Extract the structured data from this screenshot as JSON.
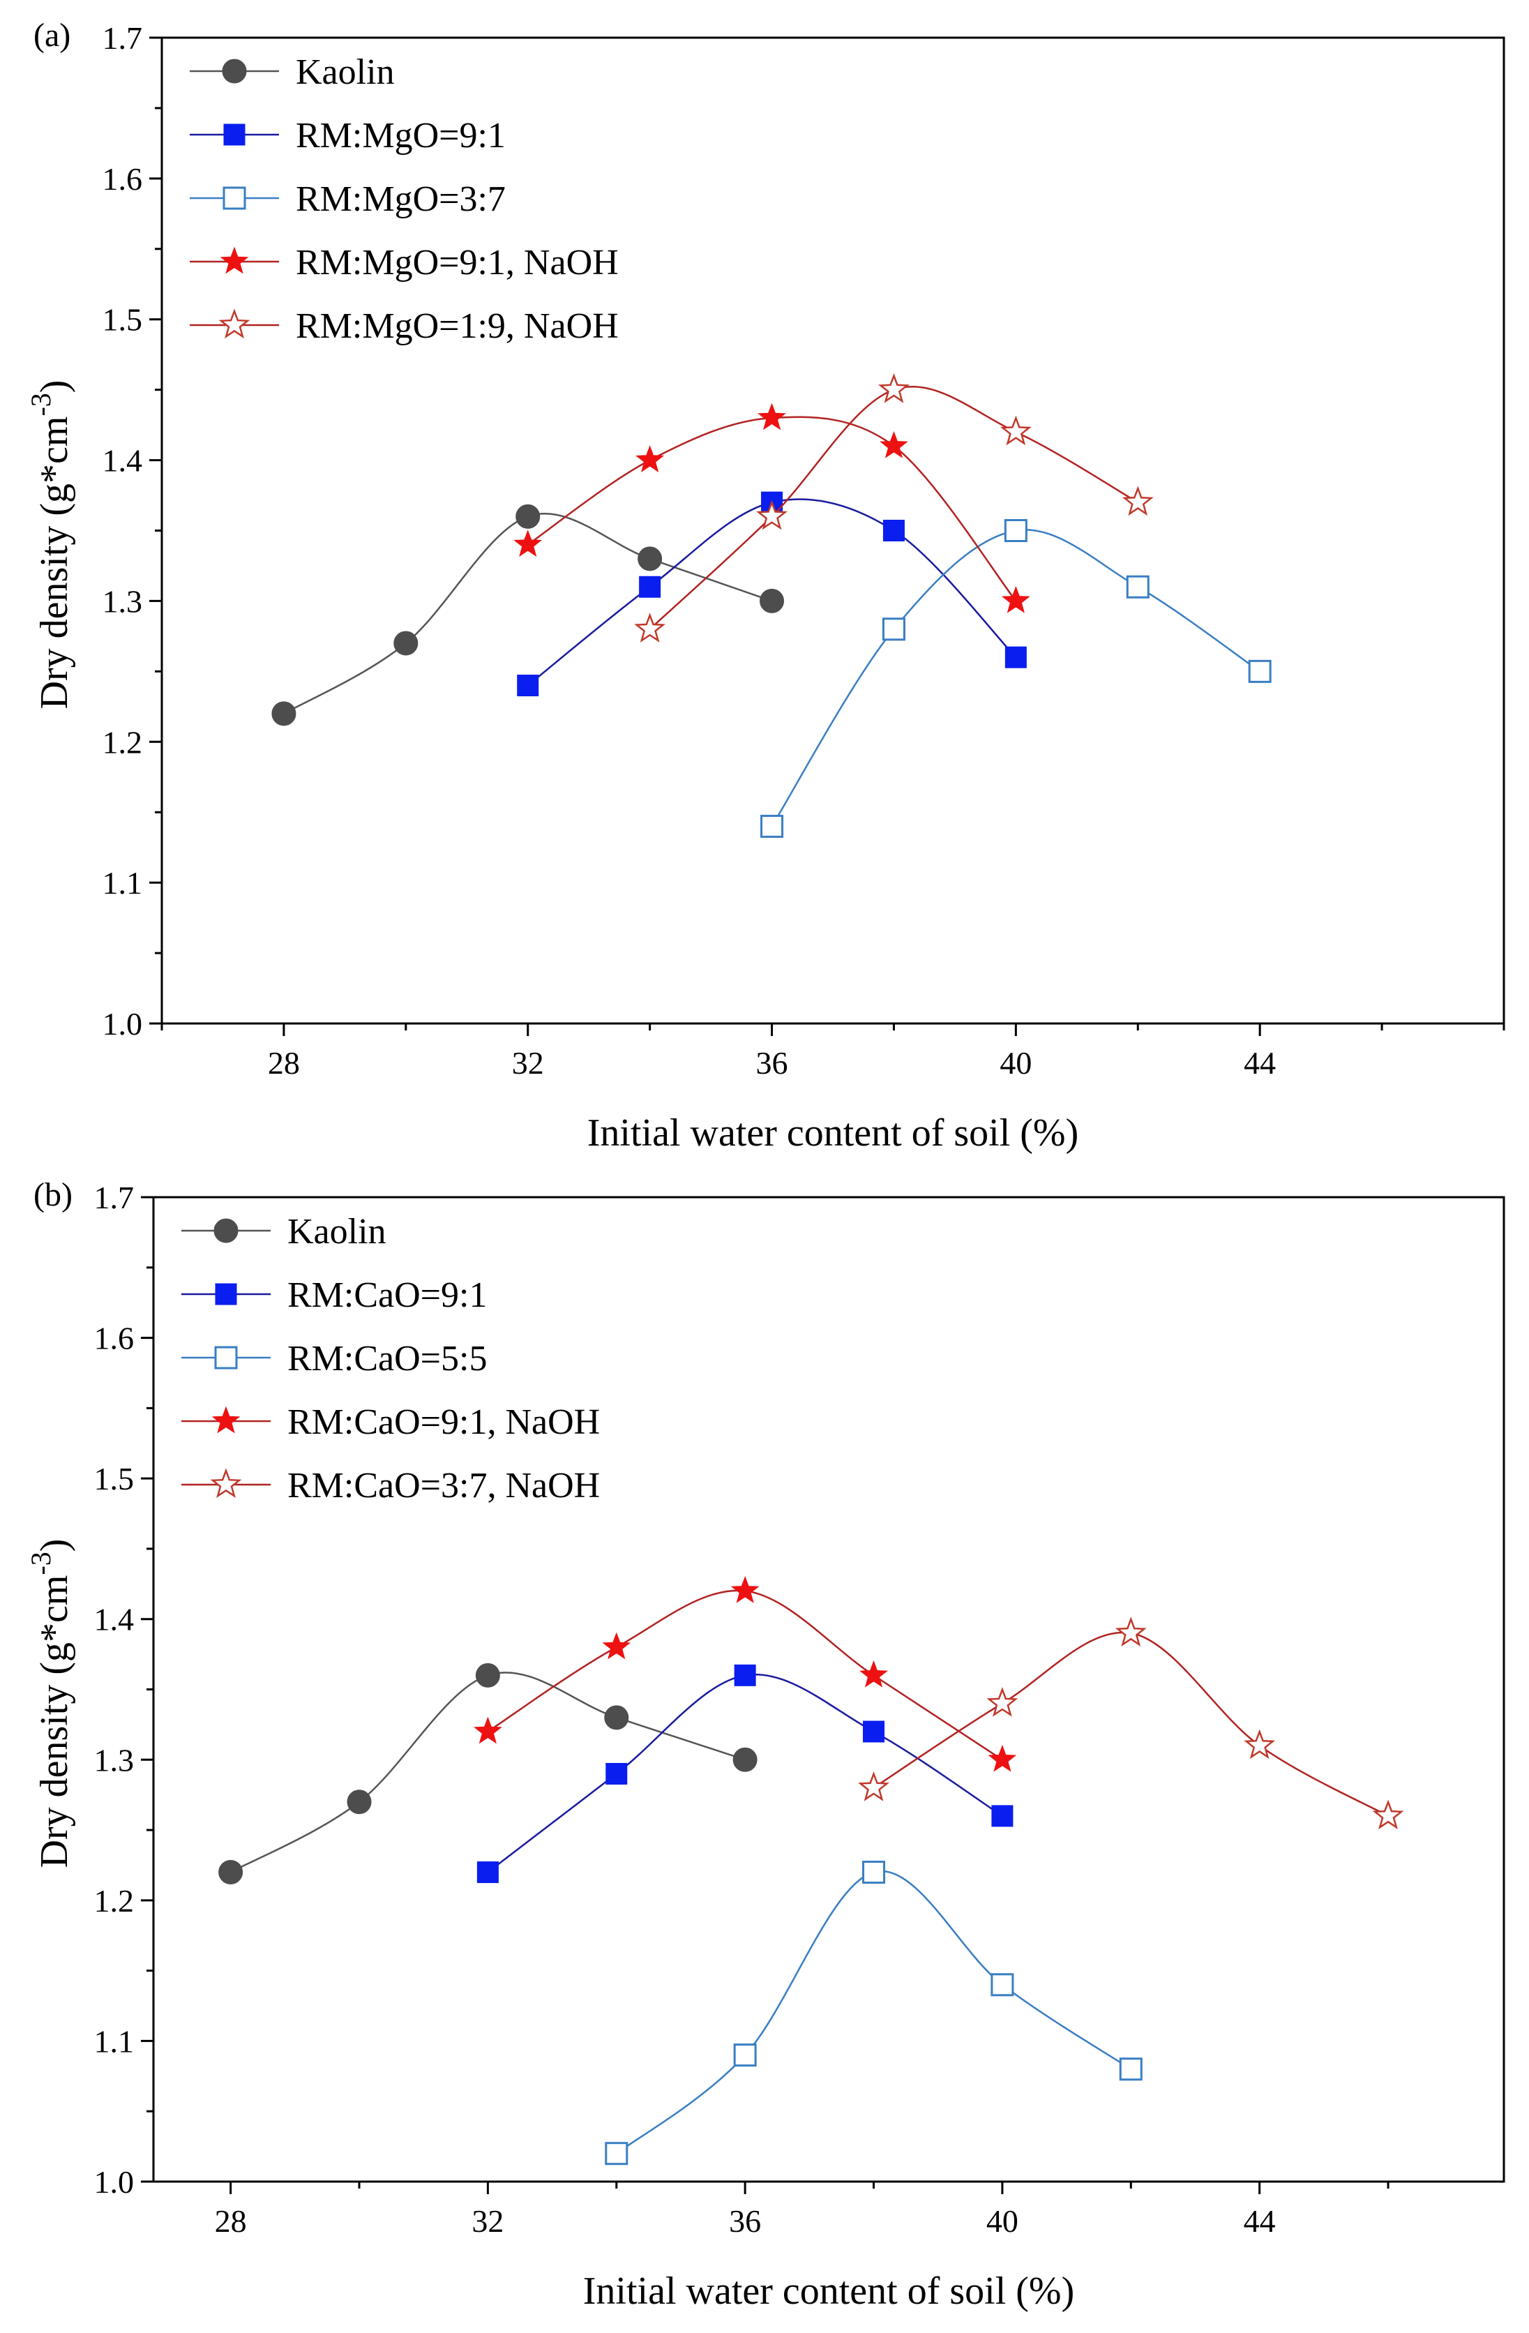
{
  "chart_data": [
    {
      "panel_label": "(a)",
      "type": "line",
      "xlabel": "Initial water content of soil (%)",
      "ylabel_main": "Dry density (g*cm",
      "ylabel_sup": "-3",
      "ylabel_close": ")",
      "xlim": [
        26,
        48
      ],
      "ylim": [
        1.0,
        1.7
      ],
      "xticks": [
        28,
        32,
        36,
        40,
        44
      ],
      "xtick_labels": [
        "28",
        "32",
        "36",
        "40",
        "44"
      ],
      "yticks": [
        1.0,
        1.1,
        1.2,
        1.3,
        1.4,
        1.5,
        1.6,
        1.7
      ],
      "ytick_labels": [
        "1.0",
        "1.1",
        "1.2",
        "1.3",
        "1.4",
        "1.5",
        "1.6",
        "1.7"
      ],
      "legend_position": "top-left",
      "series": [
        {
          "name": "Kaolin",
          "marker": "circle",
          "filled": true,
          "color": "#4d4d4d",
          "line_color": "#555555",
          "x": [
            28,
            30,
            32,
            34,
            36
          ],
          "y": [
            1.22,
            1.27,
            1.36,
            1.33,
            1.3
          ]
        },
        {
          "name": "RM:MgO=9:1",
          "marker": "square",
          "filled": true,
          "color": "#0a1ef0",
          "line_color": "#1a1aa0",
          "x": [
            32,
            34,
            36,
            38,
            40
          ],
          "y": [
            1.24,
            1.31,
            1.37,
            1.35,
            1.26
          ]
        },
        {
          "name": "RM:MgO=3:7",
          "marker": "square",
          "filled": false,
          "color": "#3a7ec4",
          "line_color": "#3a7ec4",
          "x": [
            36,
            38,
            40,
            42,
            44
          ],
          "y": [
            1.14,
            1.28,
            1.35,
            1.31,
            1.25
          ]
        },
        {
          "name": "RM:MgO=9:1, NaOH",
          "marker": "star",
          "filled": true,
          "color": "#ee1111",
          "line_color": "#b22222",
          "x": [
            32,
            34,
            36,
            38,
            40
          ],
          "y": [
            1.34,
            1.4,
            1.43,
            1.41,
            1.3
          ]
        },
        {
          "name": "RM:MgO=1:9, NaOH",
          "marker": "star",
          "filled": false,
          "color": "#c0392b",
          "line_color": "#b22222",
          "x": [
            34,
            36,
            38,
            40,
            42
          ],
          "y": [
            1.28,
            1.36,
            1.45,
            1.42,
            1.37
          ]
        }
      ]
    },
    {
      "panel_label": "(b)",
      "type": "line",
      "xlabel": "Initial water content of soil (%)",
      "ylabel_main": "Dry density (g*cm",
      "ylabel_sup": "-3",
      "ylabel_close": ")",
      "xlim": [
        26.8,
        47.8
      ],
      "ylim": [
        1.0,
        1.7
      ],
      "xticks": [
        28,
        32,
        36,
        40,
        44
      ],
      "xtick_labels": [
        "28",
        "32",
        "36",
        "40",
        "44"
      ],
      "yticks": [
        1.0,
        1.1,
        1.2,
        1.3,
        1.4,
        1.5,
        1.6,
        1.7
      ],
      "ytick_labels": [
        "1.0",
        "1.1",
        "1.2",
        "1.3",
        "1.4",
        "1.5",
        "1.6",
        "1.7"
      ],
      "legend_position": "top-left",
      "series": [
        {
          "name": "Kaolin",
          "marker": "circle",
          "filled": true,
          "color": "#4d4d4d",
          "line_color": "#555555",
          "x": [
            28,
            30,
            32,
            34,
            36
          ],
          "y": [
            1.22,
            1.27,
            1.36,
            1.33,
            1.3
          ]
        },
        {
          "name": "RM:CaO=9:1",
          "marker": "square",
          "filled": true,
          "color": "#0a1ef0",
          "line_color": "#1a1aa0",
          "x": [
            32,
            34,
            36,
            38,
            40
          ],
          "y": [
            1.22,
            1.29,
            1.36,
            1.32,
            1.26
          ]
        },
        {
          "name": "RM:CaO=5:5",
          "marker": "square",
          "filled": false,
          "color": "#3a7ec4",
          "line_color": "#3a7ec4",
          "x": [
            34,
            36,
            38,
            40,
            42
          ],
          "y": [
            1.02,
            1.09,
            1.22,
            1.14,
            1.08
          ]
        },
        {
          "name": "RM:CaO=9:1, NaOH",
          "marker": "star",
          "filled": true,
          "color": "#ee1111",
          "line_color": "#b22222",
          "x": [
            32,
            34,
            36,
            38,
            40
          ],
          "y": [
            1.32,
            1.38,
            1.42,
            1.36,
            1.3
          ]
        },
        {
          "name": "RM:CaO=3:7, NaOH",
          "marker": "star",
          "filled": false,
          "color": "#c0392b",
          "line_color": "#b22222",
          "x": [
            38,
            40,
            42,
            44,
            46
          ],
          "y": [
            1.28,
            1.34,
            1.39,
            1.31,
            1.26
          ]
        }
      ]
    }
  ]
}
